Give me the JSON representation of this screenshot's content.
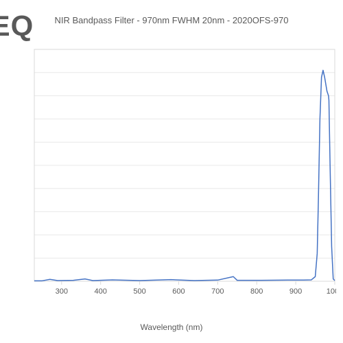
{
  "logo": {
    "text": "TEQ"
  },
  "chart": {
    "type": "line",
    "title": "NIR Bandpass Filter - 970nm FWHM 20nm - 2020OFS-970",
    "xlabel": "Wavelength (nm)",
    "title_fontsize": 13,
    "label_fontsize": 12,
    "tick_fontsize": 11,
    "text_color": "#595959",
    "background_color": "#ffffff",
    "plot_border_color": "#d9d9d9",
    "grid_color": "#e8e8e8",
    "line_color": "#4472c4",
    "line_width": 1.5,
    "xlim": [
      230,
      1000
    ],
    "xtick_start": 300,
    "xtick_step": 100,
    "ylim": [
      0,
      100
    ],
    "n_ygrid": 10,
    "series": [
      [
        230,
        0.2
      ],
      [
        250,
        0.2
      ],
      [
        270,
        0.8
      ],
      [
        290,
        0.3
      ],
      [
        330,
        0.4
      ],
      [
        360,
        1.0
      ],
      [
        380,
        0.3
      ],
      [
        430,
        0.6
      ],
      [
        500,
        0.3
      ],
      [
        580,
        0.7
      ],
      [
        640,
        0.3
      ],
      [
        700,
        0.5
      ],
      [
        740,
        2.0
      ],
      [
        750,
        0.4
      ],
      [
        800,
        0.4
      ],
      [
        880,
        0.5
      ],
      [
        920,
        0.5
      ],
      [
        940,
        0.6
      ],
      [
        950,
        2.0
      ],
      [
        955,
        12.0
      ],
      [
        958,
        35.0
      ],
      [
        962,
        70.0
      ],
      [
        966,
        88.0
      ],
      [
        970,
        91.0
      ],
      [
        974,
        88.0
      ],
      [
        980,
        82.0
      ],
      [
        984,
        80.0
      ],
      [
        985,
        78.0
      ],
      [
        988,
        50.0
      ],
      [
        992,
        15.0
      ],
      [
        996,
        1.0
      ],
      [
        1000,
        0.3
      ]
    ]
  }
}
